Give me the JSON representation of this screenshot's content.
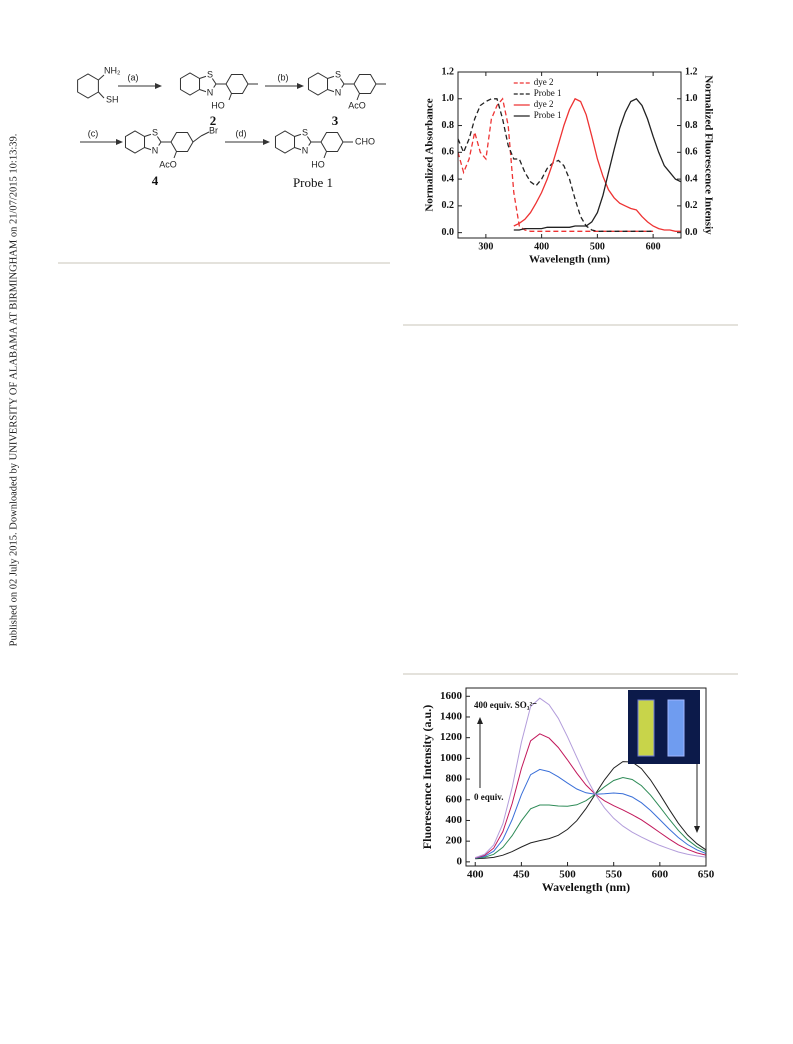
{
  "sidebar": "Published on 02 July 2015. Downloaded by UNIVERSITY OF ALABAMA AT BIRMINGHAM on 21/07/2015 10:13:39.",
  "scheme": {
    "labels": [
      "NH₂",
      "SH",
      "(a)",
      "2",
      "HO",
      "(b)",
      "3",
      "AcO",
      "(c)",
      "Br",
      "4",
      "AcO",
      "(d)",
      "CHO",
      "HO",
      "Probe 1"
    ],
    "atoms": [
      "S",
      "N",
      "S",
      "N",
      "S",
      "N",
      "S",
      "N"
    ]
  },
  "chart_data": [
    {
      "type": "line",
      "xlabel": "Wavelength (nm)",
      "ylabel": "Normalized Absorbance",
      "y2label": "Normalized Fluorescence Intensiy",
      "x": [
        250,
        260,
        270,
        280,
        290,
        300,
        310,
        320,
        330,
        340,
        350,
        360,
        370,
        380,
        390,
        400,
        410,
        420,
        430,
        440,
        450,
        460,
        470,
        480,
        490,
        500,
        510,
        520,
        530,
        540,
        550,
        560,
        570,
        580,
        590,
        600,
        610,
        620,
        630,
        640,
        650
      ],
      "xlim": [
        250,
        650
      ],
      "xticks": [
        300,
        400,
        500,
        600
      ],
      "ylim": [
        -0.04,
        1.2
      ],
      "yticks": [
        {
          "value": 0,
          "label": "0.0"
        },
        0.2,
        0.4,
        0.6,
        0.8,
        {
          "value": 1,
          "label": "1.0"
        },
        1.2
      ],
      "y2lim": [
        -0.04,
        1.2
      ],
      "y2ticks": [
        {
          "value": 0,
          "label": "0.0"
        },
        0.2,
        0.4,
        0.6,
        0.8,
        {
          "value": 1,
          "label": "1.0"
        },
        1.2
      ],
      "legend": "upper center",
      "series": [
        {
          "name": "dye 2",
          "color": "#ee3333",
          "linestyle": "dashed",
          "values": [
            0.6,
            0.45,
            0.55,
            0.75,
            0.6,
            0.55,
            0.85,
            0.95,
            1.0,
            0.8,
            0.3,
            0.05,
            0.02,
            0.01,
            0.01,
            0.01,
            0.01,
            0.01,
            0.01,
            0.01,
            0.01,
            0.01,
            0.01,
            0.01,
            0.01,
            0.01,
            0.01,
            0.01,
            0.01,
            0.01,
            0.01,
            0.01,
            0.01,
            0.01,
            0.01,
            0.01,
            null,
            null,
            null,
            null,
            null
          ]
        },
        {
          "name": "Probe 1",
          "color": "#222222",
          "linestyle": "dashed",
          "values": [
            0.7,
            0.6,
            0.7,
            0.85,
            0.95,
            0.98,
            1.0,
            1.0,
            0.85,
            0.65,
            0.55,
            0.55,
            0.45,
            0.38,
            0.35,
            0.4,
            0.48,
            0.52,
            0.54,
            0.5,
            0.4,
            0.25,
            0.12,
            0.05,
            0.02,
            0.01,
            0.01,
            0.01,
            0.01,
            0.01,
            0.01,
            0.01,
            0.01,
            0.01,
            0.01,
            0.01,
            null,
            null,
            null,
            null,
            null
          ]
        },
        {
          "name": "dye 2",
          "color": "#ee3333",
          "linestyle": "solid",
          "axis": "y2",
          "values": [
            null,
            null,
            null,
            null,
            null,
            null,
            null,
            null,
            null,
            null,
            0.05,
            0.07,
            0.1,
            0.15,
            0.22,
            0.3,
            0.4,
            0.52,
            0.66,
            0.8,
            0.92,
            1.0,
            0.98,
            0.88,
            0.72,
            0.55,
            0.42,
            0.32,
            0.26,
            0.22,
            0.2,
            0.18,
            0.17,
            0.12,
            0.08,
            0.05,
            0.03,
            0.02,
            0.02,
            0.01,
            0.01
          ]
        },
        {
          "name": "Probe 1",
          "color": "#222222",
          "linestyle": "solid",
          "axis": "y2",
          "values": [
            null,
            null,
            null,
            null,
            null,
            null,
            null,
            null,
            null,
            null,
            0.02,
            0.02,
            0.03,
            0.03,
            0.03,
            0.03,
            0.04,
            0.04,
            0.04,
            0.04,
            0.04,
            0.05,
            0.05,
            0.05,
            0.08,
            0.15,
            0.28,
            0.45,
            0.62,
            0.78,
            0.9,
            0.98,
            1.0,
            0.95,
            0.85,
            0.72,
            0.6,
            0.5,
            0.45,
            0.4,
            0.38
          ]
        }
      ]
    },
    {
      "type": "line",
      "xlabel": "Wavelength (nm)",
      "ylabel": "Fluorescence Intensity (a.u.)",
      "annotations": [
        "400 equiv. SO₃²⁻",
        "0 equiv."
      ],
      "x": [
        400,
        410,
        420,
        430,
        440,
        450,
        460,
        470,
        480,
        490,
        500,
        510,
        520,
        530,
        540,
        550,
        560,
        570,
        580,
        590,
        600,
        610,
        620,
        630,
        640,
        650
      ],
      "xlim": [
        390,
        650
      ],
      "xticks": [
        400,
        450,
        500,
        550,
        600,
        650
      ],
      "ylim": [
        -40,
        1680
      ],
      "yticks": [
        0,
        200,
        400,
        600,
        800,
        1000,
        1200,
        1400,
        1600
      ],
      "series": [
        {
          "color": "#222222",
          "values": [
            31,
            34,
            43,
            64,
            99,
            144,
            183,
            205,
            225,
            257,
            314,
            398,
            515,
            653,
            792,
            906,
            969,
            965,
            901,
            791,
            654,
            509,
            374,
            261,
            176,
            116
          ]
        },
        {
          "color": "#2e8b57",
          "values": [
            33,
            44,
            73,
            141,
            254,
            397,
            513,
            549,
            549,
            540,
            538,
            551,
            591,
            654,
            725,
            786,
            815,
            796,
            737,
            644,
            532,
            414,
            305,
            214,
            146,
            99
          ]
        },
        {
          "color": "#3a6fd8",
          "values": [
            36,
            53,
            103,
            216,
            409,
            649,
            842,
            893,
            872,
            822,
            761,
            704,
            667,
            654,
            658,
            665,
            658,
            627,
            572,
            496,
            408,
            318,
            235,
            168,
            117,
            81
          ]
        },
        {
          "color": "#c2185b",
          "values": [
            38,
            62,
            133,
            293,
            565,
            902,
            1170,
            1237,
            1196,
            1105,
            985,
            857,
            743,
            655,
            590,
            543,
            502,
            456,
            406,
            346,
            284,
            222,
            165,
            121,
            87,
            64
          ]
        },
        {
          "color": "#b39ddb",
          "values": [
            41,
            72,
            163,
            369,
            720,
            1155,
            1500,
            1581,
            1519,
            1387,
            1208,
            1010,
            819,
            655,
            521,
            421,
            346,
            287,
            239,
            197,
            159,
            126,
            95,
            74,
            58,
            46
          ]
        }
      ]
    }
  ]
}
